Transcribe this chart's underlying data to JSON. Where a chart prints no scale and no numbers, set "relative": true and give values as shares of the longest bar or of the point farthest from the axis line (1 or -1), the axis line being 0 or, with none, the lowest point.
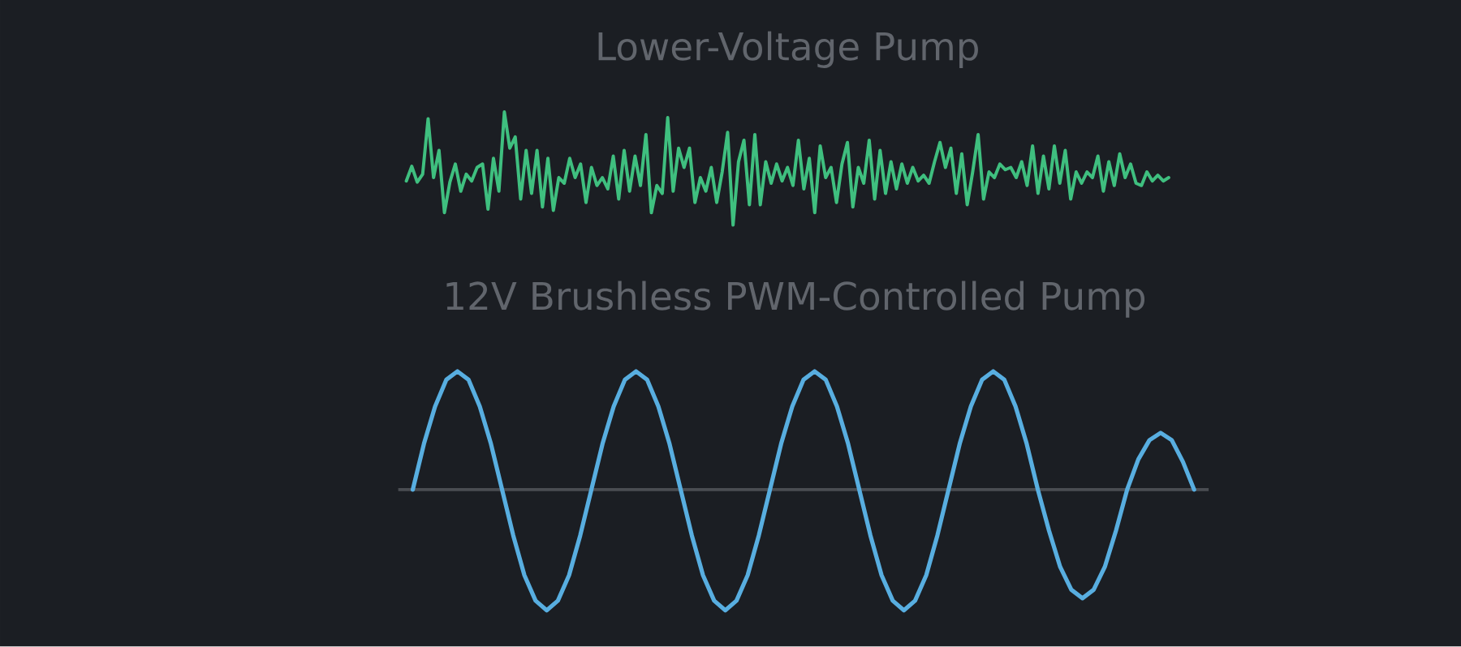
{
  "chart_data": [
    {
      "type": "line",
      "title": "Lower-Voltage Pump",
      "relative": true,
      "categories": [
        null,
        null,
        null,
        null,
        null,
        null,
        null,
        null,
        null,
        null,
        null,
        null,
        null,
        null,
        null,
        null,
        null,
        null,
        null,
        null,
        null,
        null,
        null,
        null,
        null,
        null,
        null,
        null,
        null,
        null,
        null,
        null,
        null,
        null,
        null,
        null,
        null,
        null,
        null,
        null,
        null,
        null,
        null,
        null,
        null,
        null,
        null,
        null,
        null,
        null,
        null,
        null,
        null,
        null,
        null,
        null,
        null,
        null,
        null,
        null,
        null,
        null,
        null,
        null,
        null,
        null,
        null,
        null,
        null,
        null,
        null,
        null,
        null,
        null,
        null,
        null,
        null,
        null,
        null,
        null,
        null,
        null,
        null,
        null,
        null,
        null,
        null,
        null,
        null,
        null,
        null,
        null,
        null,
        null,
        null,
        null,
        null,
        null,
        null,
        null,
        null,
        null,
        null,
        null,
        null,
        null,
        null,
        null,
        null,
        null,
        null,
        null,
        null,
        null,
        null,
        null,
        null,
        null,
        null,
        null,
        null,
        null,
        null,
        null,
        null,
        null,
        null,
        null,
        null,
        null,
        null,
        null,
        null,
        null,
        null,
        null,
        null,
        null,
        null,
        null,
        null
      ],
      "series": [
        {
          "color": "#3fbf7f",
          "values": [
            0.39,
            0.52,
            0.38,
            0.45,
            0.94,
            0.42,
            0.66,
            0.11,
            0.38,
            0.54,
            0.3,
            0.45,
            0.39,
            0.51,
            0.54,
            0.14,
            0.59,
            0.3,
            1.0,
            0.68,
            0.78,
            0.23,
            0.66,
            0.28,
            0.66,
            0.16,
            0.59,
            0.13,
            0.42,
            0.37,
            0.59,
            0.42,
            0.54,
            0.2,
            0.51,
            0.35,
            0.42,
            0.32,
            0.61,
            0.23,
            0.66,
            0.3,
            0.61,
            0.35,
            0.8,
            0.11,
            0.35,
            0.28,
            0.95,
            0.3,
            0.68,
            0.51,
            0.68,
            0.2,
            0.42,
            0.3,
            0.51,
            0.2,
            0.47,
            0.82,
            0.0,
            0.56,
            0.75,
            0.18,
            0.8,
            0.18,
            0.56,
            0.37,
            0.54,
            0.39,
            0.51,
            0.35,
            0.75,
            0.32,
            0.59,
            0.11,
            0.7,
            0.42,
            0.51,
            0.2,
            0.54,
            0.73,
            0.16,
            0.51,
            0.37,
            0.75,
            0.23,
            0.66,
            0.28,
            0.56,
            0.32,
            0.54,
            0.37,
            0.51,
            0.39,
            0.44,
            0.37,
            0.56,
            0.73,
            0.51,
            0.68,
            0.28,
            0.63,
            0.18,
            0.47,
            0.8,
            0.23,
            0.47,
            0.42,
            0.54,
            0.49,
            0.51,
            0.42,
            0.56,
            0.35,
            0.7,
            0.28,
            0.61,
            0.32,
            0.7,
            0.37,
            0.66,
            0.23,
            0.47,
            0.37,
            0.47,
            0.42,
            0.61,
            0.3,
            0.56,
            0.35,
            0.63,
            0.42,
            0.54,
            0.37,
            0.35,
            0.47,
            0.39,
            0.44,
            0.39,
            0.42
          ]
        }
      ]
    },
    {
      "type": "line",
      "title": "12V Brushless PWM-Controlled Pump",
      "relative": true,
      "categories": [
        null,
        null,
        null,
        null,
        null,
        null,
        null,
        null,
        null,
        null,
        null,
        null,
        null,
        null,
        null,
        null,
        null,
        null,
        null,
        null,
        null,
        null,
        null,
        null,
        null,
        null,
        null,
        null,
        null,
        null,
        null,
        null,
        null,
        null,
        null,
        null,
        null,
        null,
        null,
        null,
        null,
        null,
        null,
        null,
        null,
        null,
        null,
        null,
        null,
        null,
        null,
        null,
        null,
        null,
        null,
        null,
        null,
        null,
        null,
        null,
        null,
        null,
        null,
        null,
        null,
        null,
        null,
        null,
        null,
        null,
        null
      ],
      "series": [
        {
          "color": "#58aee0",
          "values": [
            0,
            0.38,
            0.69,
            0.91,
            0.98,
            0.91,
            0.69,
            0.38,
            0,
            -0.38,
            -0.71,
            -0.92,
            -1,
            -0.92,
            -0.71,
            -0.38,
            0,
            0.38,
            0.69,
            0.91,
            0.98,
            0.91,
            0.69,
            0.38,
            0,
            -0.38,
            -0.71,
            -0.92,
            -1,
            -0.92,
            -0.71,
            -0.38,
            0,
            0.38,
            0.69,
            0.91,
            0.98,
            0.91,
            0.69,
            0.38,
            0,
            -0.38,
            -0.71,
            -0.92,
            -1,
            -0.92,
            -0.71,
            -0.38,
            0,
            0.38,
            0.69,
            0.91,
            0.98,
            0.91,
            0.69,
            0.38,
            0,
            -0.34,
            -0.64,
            -0.83,
            -0.9,
            -0.83,
            -0.64,
            -0.34,
            0,
            0.25,
            0.41,
            0.47,
            0.41,
            0.23,
            0
          ]
        }
      ]
    }
  ]
}
